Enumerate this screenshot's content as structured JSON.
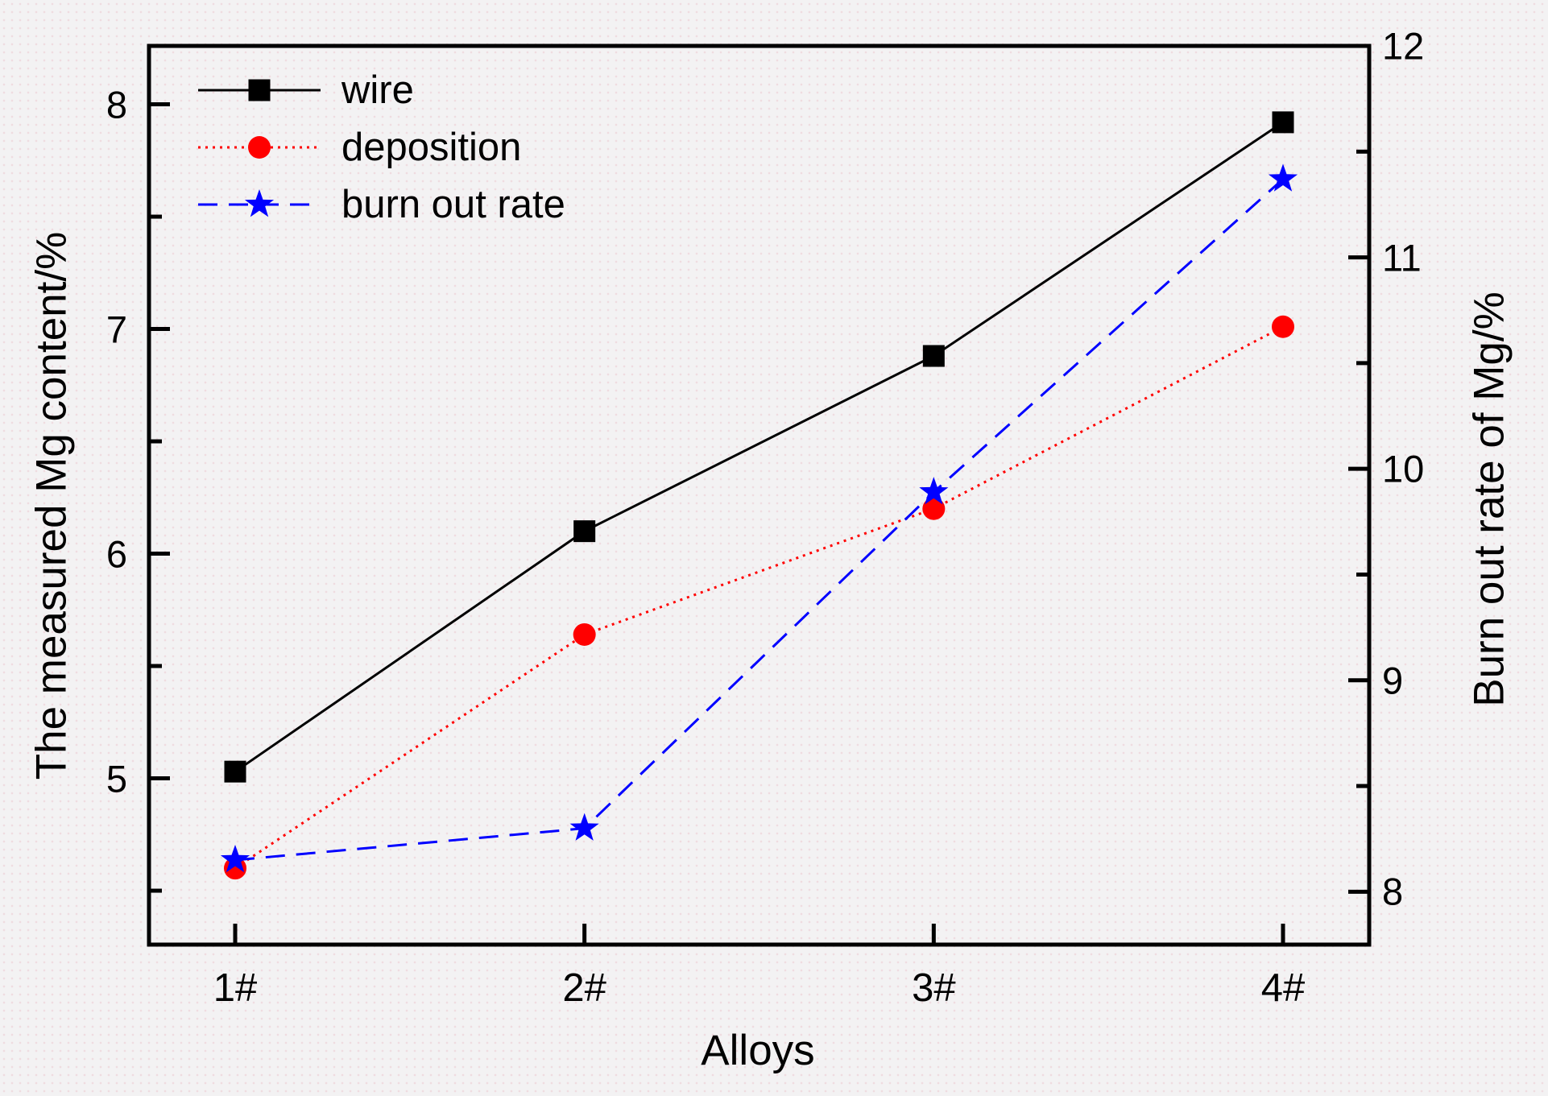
{
  "chart_data": {
    "type": "line",
    "title": "",
    "categories": [
      "1#",
      "2#",
      "3#",
      "4#"
    ],
    "series": [
      {
        "name": "wire",
        "axis": "left",
        "color": "#000000",
        "marker": "square",
        "line_style": "solid",
        "values": [
          5.03,
          6.1,
          6.88,
          7.92
        ]
      },
      {
        "name": "deposition",
        "axis": "left",
        "color": "#ff0000",
        "marker": "circle",
        "line_style": "dotted",
        "values": [
          4.6,
          5.64,
          6.2,
          7.01
        ]
      },
      {
        "name": "burn out rate",
        "axis": "right",
        "color": "#0000ff",
        "marker": "star",
        "line_style": "dashed",
        "values": [
          8.15,
          8.3,
          9.89,
          11.37
        ]
      }
    ],
    "xlabel": "Alloys",
    "ylabel_left": "The measured Mg content/%",
    "ylabel_right": "Burn out rate of Mg/%",
    "ylim_left": [
      4.26,
      8.26
    ],
    "ylim_right": [
      7.75,
      12.0
    ],
    "yticks_left": [
      8,
      7,
      6,
      5
    ],
    "yticks_left_minor": [
      7.5,
      6.5,
      5.5,
      4.5
    ],
    "yticks_right": [
      12,
      11,
      10,
      9,
      8
    ],
    "yticks_right_minor": [
      11.5,
      10.5,
      9.5,
      8.5
    ],
    "grid": false,
    "legend_position": "top-left-inside",
    "axis_color": "#000000"
  }
}
